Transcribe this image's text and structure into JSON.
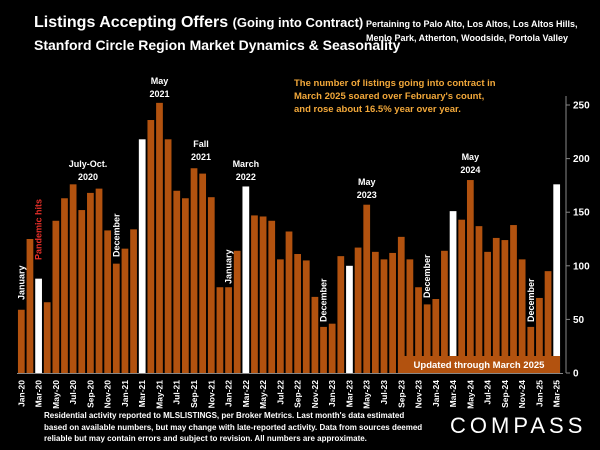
{
  "header": {
    "title_main": "Listings Accepting Offers",
    "title_paren": "(Going into Contract)",
    "title_sub": "Stanford Circle Region Market Dynamics & Seasonality",
    "pertaining": "Pertaining to Palo Alto, Los Altos, Los Altos Hills, Menlo Park, Atherton, Woodside, Portola Valley"
  },
  "footer": {
    "note": "Residential activity reported to MLSLISTINGS, per Broker Metrics. Last month's data estimated based on available numbers, but may change with late-reported activity. Data from sources deemed reliable but may contain errors and subject to revision. All numbers are approximate.",
    "logo": "COMPASS"
  },
  "colors": {
    "background": "#000000",
    "bar": "#B2520F",
    "highlight_bar": "#FFFFFF",
    "callout_text": "#F2A83A",
    "pandemic_label": "#E8302A",
    "update_box": "#B2520F"
  },
  "chart_data": {
    "type": "bar",
    "title": "Listings Accepting Offers (Going into Contract)",
    "ylim": [
      0,
      260
    ],
    "yticks": [
      0,
      50,
      100,
      150,
      200,
      250
    ],
    "y_axis_side": "right",
    "grid": false,
    "x_tick_labels": [
      "Jan-20",
      "Mar-20",
      "May-20",
      "Jul-20",
      "Sep-20",
      "Nov-20",
      "Jan-21",
      "Mar-21",
      "May-21",
      "Jul-21",
      "Sep-21",
      "Nov-21",
      "Jan-22",
      "Mar-22",
      "May-22",
      "Jul-22",
      "Sep-22",
      "Nov-22",
      "Jan-23",
      "Mar-23",
      "May-23",
      "Jul-23",
      "Sep-23",
      "Nov-23",
      "Jan-24",
      "Mar-24",
      "May-24",
      "Jul-24",
      "Sep-24",
      "Nov-24",
      "Jan-25",
      "Mar-25"
    ],
    "categories": [
      "Jan-20",
      "Feb-20",
      "Mar-20",
      "Apr-20",
      "May-20",
      "Jun-20",
      "Jul-20",
      "Aug-20",
      "Sep-20",
      "Oct-20",
      "Nov-20",
      "Dec-20",
      "Jan-21",
      "Feb-21",
      "Mar-21",
      "Apr-21",
      "May-21",
      "Jun-21",
      "Jul-21",
      "Aug-21",
      "Sep-21",
      "Oct-21",
      "Nov-21",
      "Dec-21",
      "Jan-22",
      "Feb-22",
      "Mar-22",
      "Apr-22",
      "May-22",
      "Jun-22",
      "Jul-22",
      "Aug-22",
      "Sep-22",
      "Oct-22",
      "Nov-22",
      "Dec-22",
      "Jan-23",
      "Feb-23",
      "Mar-23",
      "Apr-23",
      "May-23",
      "Jun-23",
      "Jul-23",
      "Aug-23",
      "Sep-23",
      "Oct-23",
      "Nov-23",
      "Dec-23",
      "Jan-24",
      "Feb-24",
      "Mar-24",
      "Apr-24",
      "May-24",
      "Jun-24",
      "Jul-24",
      "Aug-24",
      "Sep-24",
      "Oct-24",
      "Nov-24",
      "Dec-24",
      "Jan-25",
      "Feb-25",
      "Mar-25"
    ],
    "values": [
      59,
      125,
      88,
      66,
      142,
      163,
      176,
      152,
      168,
      172,
      133,
      102,
      116,
      134,
      218,
      236,
      252,
      218,
      170,
      163,
      191,
      186,
      164,
      80,
      80,
      114,
      174,
      147,
      146,
      142,
      106,
      132,
      111,
      105,
      71,
      43,
      46,
      109,
      100,
      117,
      157,
      113,
      106,
      112,
      127,
      106,
      80,
      64,
      69,
      114,
      151,
      143,
      180,
      137,
      113,
      126,
      124,
      138,
      106,
      43,
      70,
      95,
      176
    ],
    "highlighted": [
      "Mar-20",
      "Mar-21",
      "Mar-22",
      "Mar-23",
      "Mar-24",
      "Mar-25"
    ],
    "annotations": {
      "january_1": "January",
      "pandemic": "Pandemic hits",
      "december_1": "December",
      "jul_oct_2020": "July-Oct. 2020",
      "may_2021": "May 2021",
      "fall_2021": "Fall 2021",
      "march_2022": "March 2022",
      "january_2": "January",
      "december_2": "December",
      "may_2023": "May 2023",
      "december_3": "December",
      "may_2024": "May 2024",
      "december_4": "December",
      "callout": "The number of listings going into contract in March 2025 soared over February's count, and rose about 16.5% year over year.",
      "updated": "Updated through March 2025"
    }
  }
}
